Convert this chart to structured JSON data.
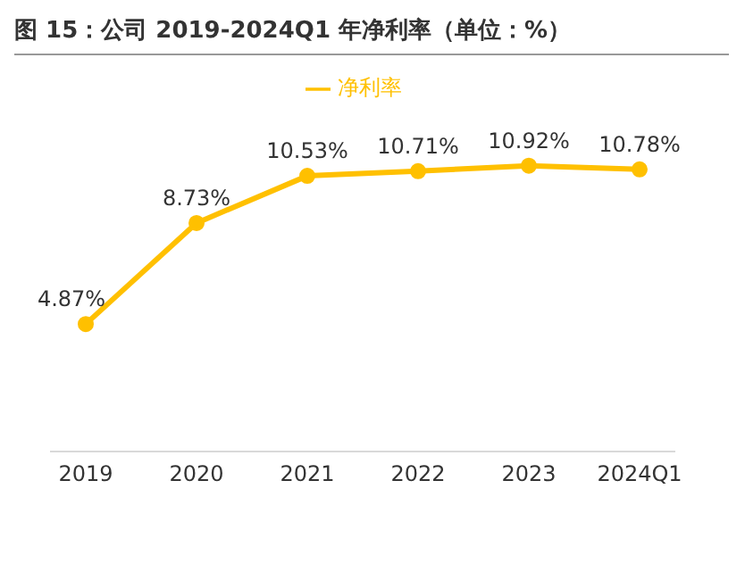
{
  "chart_data": {
    "type": "line",
    "title": "图 15：公司 2019-2024Q1 年净利率（单位：%）",
    "categories": [
      "2019",
      "2020",
      "2021",
      "2022",
      "2023",
      "2024Q1"
    ],
    "series": [
      {
        "name": "净利率",
        "color": "#ffc000",
        "values": [
          4.87,
          8.73,
          10.53,
          10.71,
          10.92,
          10.78
        ],
        "value_labels": [
          "4.87%",
          "8.73%",
          "10.53%",
          "10.71%",
          "10.92%",
          "10.78%"
        ]
      }
    ],
    "tick_labels": "x",
    "legend": "top",
    "marker": "circle",
    "line_style": "solid",
    "grid": false
  }
}
